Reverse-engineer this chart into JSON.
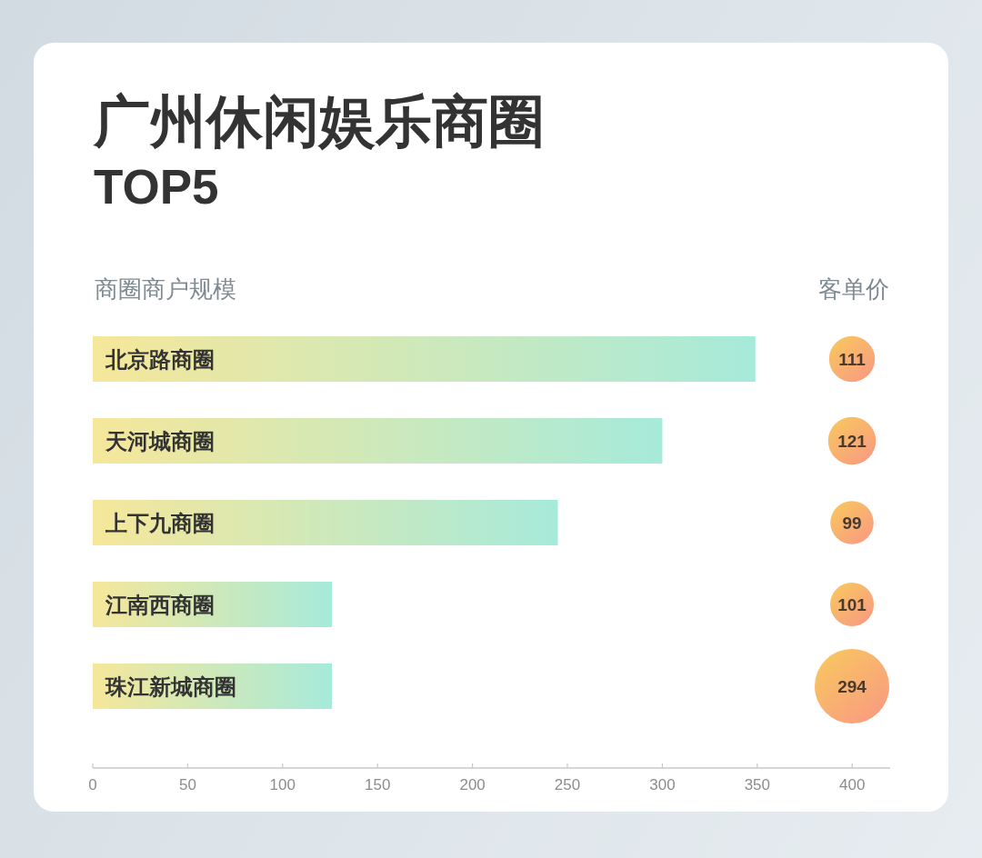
{
  "chart_data": [
    {
      "type": "bar",
      "orientation": "horizontal",
      "title": "广州休闲娱乐商圈",
      "subtitle": "TOP5",
      "xlabel": "商圈商户规模",
      "categories": [
        "北京路商圈",
        "天河城商圈",
        "上下九商圈",
        "江南西商圈",
        "珠江新城商圈"
      ],
      "values": [
        349,
        300,
        245,
        126,
        126
      ],
      "color": "#f6e79a",
      "xlim": [
        0,
        420
      ],
      "xticks": [
        0,
        50,
        100,
        150,
        200,
        250,
        300,
        350,
        400
      ]
    },
    {
      "type": "other",
      "title": "客单价",
      "categories": [
        null,
        null,
        null,
        null,
        null
      ],
      "values": [
        111,
        121,
        99,
        101,
        294
      ],
      "color": "#f8c462",
      "data_labels": true
    }
  ]
}
